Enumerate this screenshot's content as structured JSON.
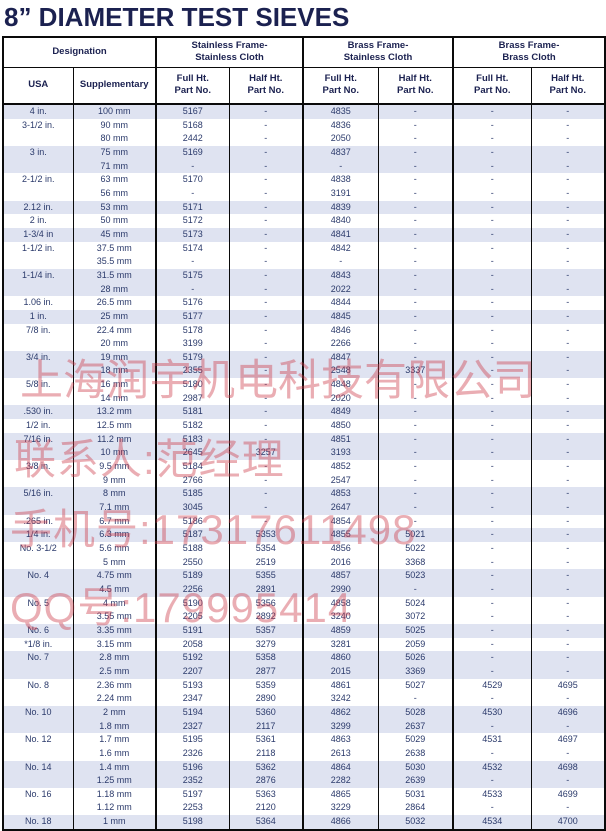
{
  "title": "8” DIAMETER TEST SIEVES",
  "table": {
    "group_headers": [
      {
        "label": "Designation"
      },
      {
        "label": "Stainless Frame-\nStainless Cloth"
      },
      {
        "label": "Brass Frame-\nStainless Cloth"
      },
      {
        "label": "Brass Frame-\nBrass Cloth"
      }
    ],
    "sub_headers": [
      "USA",
      "Supplementary",
      "Full Ht.\nPart No.",
      "Half Ht.\nPart No.",
      "Full Ht.\nPart No.",
      "Half Ht.\nPart No.",
      "Full Ht.\nPart No.",
      "Half Ht.\nPart No."
    ],
    "column_keys": [
      "usa",
      "supplementary",
      "ss-full",
      "ss-half",
      "brass-ss-full",
      "brass-ss-half",
      "brass-brass-full",
      "brass-brass-half"
    ],
    "rows": [
      {
        "shaded": true,
        "cells": [
          "4 in.",
          "100 mm",
          "5167",
          "-",
          "4835",
          "-",
          "-",
          "-"
        ]
      },
      {
        "shaded": false,
        "cells": [
          "3-1/2 in.",
          "90 mm",
          "5168",
          "-",
          "4836",
          "-",
          "-",
          "-"
        ]
      },
      {
        "shaded": false,
        "cells": [
          "",
          "80 mm",
          "2442",
          "-",
          "2050",
          "-",
          "-",
          "-"
        ]
      },
      {
        "shaded": true,
        "cells": [
          "3 in.",
          "75 mm",
          "5169",
          "-",
          "4837",
          "-",
          "-",
          "-"
        ]
      },
      {
        "shaded": true,
        "cells": [
          "",
          "71 mm",
          "-",
          "-",
          "-",
          "-",
          "-",
          "-"
        ]
      },
      {
        "shaded": false,
        "cells": [
          "2-1/2 in.",
          "63 mm",
          "5170",
          "-",
          "4838",
          "-",
          "-",
          "-"
        ]
      },
      {
        "shaded": false,
        "cells": [
          "",
          "56 mm",
          "-",
          "-",
          "3191",
          "-",
          "-",
          "-"
        ]
      },
      {
        "shaded": true,
        "cells": [
          "2.12 in.",
          "53 mm",
          "5171",
          "-",
          "4839",
          "-",
          "-",
          "-"
        ]
      },
      {
        "shaded": false,
        "cells": [
          "2 in.",
          "50 mm",
          "5172",
          "-",
          "4840",
          "-",
          "-",
          "-"
        ]
      },
      {
        "shaded": true,
        "cells": [
          "1-3/4 in",
          "45 mm",
          "5173",
          "-",
          "4841",
          "-",
          "-",
          "-"
        ]
      },
      {
        "shaded": false,
        "cells": [
          "1-1/2 in.",
          "37.5 mm",
          "5174",
          "-",
          "4842",
          "-",
          "-",
          "-"
        ]
      },
      {
        "shaded": false,
        "cells": [
          "",
          "35.5 mm",
          "-",
          "-",
          "-",
          "-",
          "-",
          "-"
        ]
      },
      {
        "shaded": true,
        "cells": [
          "1-1/4 in.",
          "31.5 mm",
          "5175",
          "-",
          "4843",
          "-",
          "-",
          "-"
        ]
      },
      {
        "shaded": true,
        "cells": [
          "",
          "28 mm",
          "-",
          "-",
          "2022",
          "-",
          "-",
          "-"
        ]
      },
      {
        "shaded": false,
        "cells": [
          "1.06 in.",
          "26.5 mm",
          "5176",
          "-",
          "4844",
          "-",
          "-",
          "-"
        ]
      },
      {
        "shaded": true,
        "cells": [
          "1 in.",
          "25 mm",
          "5177",
          "-",
          "4845",
          "-",
          "-",
          "-"
        ]
      },
      {
        "shaded": false,
        "cells": [
          "7/8 in.",
          "22.4 mm",
          "5178",
          "-",
          "4846",
          "-",
          "-",
          "-"
        ]
      },
      {
        "shaded": false,
        "cells": [
          "",
          "20 mm",
          "3199",
          "-",
          "2266",
          "-",
          "-",
          "-"
        ]
      },
      {
        "shaded": true,
        "cells": [
          "3/4 in.",
          "19 mm",
          "5179",
          "-",
          "4847",
          "-",
          "-",
          "-"
        ]
      },
      {
        "shaded": true,
        "cells": [
          "",
          "18 mm",
          "2355",
          "-",
          "2548",
          "3337",
          "-",
          "-"
        ]
      },
      {
        "shaded": false,
        "cells": [
          "5/8 in.",
          "16 mm",
          "5180",
          "-",
          "4848",
          "-",
          "-",
          "-"
        ]
      },
      {
        "shaded": false,
        "cells": [
          "",
          "14 mm",
          "2987",
          "-",
          "2020",
          "-",
          "-",
          "-"
        ]
      },
      {
        "shaded": true,
        "cells": [
          ".530 in.",
          "13.2 mm",
          "5181",
          "-",
          "4849",
          "-",
          "-",
          "-"
        ]
      },
      {
        "shaded": false,
        "cells": [
          "1/2 in.",
          "12.5 mm",
          "5182",
          "-",
          "4850",
          "-",
          "-",
          "-"
        ]
      },
      {
        "shaded": true,
        "cells": [
          "7/16 in.",
          "11.2 mm",
          "5183",
          "-",
          "4851",
          "-",
          "-",
          "-"
        ]
      },
      {
        "shaded": true,
        "cells": [
          "",
          "10 mm",
          "2645",
          "3257",
          "3193",
          "-",
          "-",
          "-"
        ]
      },
      {
        "shaded": false,
        "cells": [
          "3/8 in.",
          "9.5 mm",
          "5184",
          "-",
          "4852",
          "-",
          "-",
          "-"
        ]
      },
      {
        "shaded": false,
        "cells": [
          "",
          "9 mm",
          "2766",
          "-",
          "2547",
          "-",
          "-",
          "-"
        ]
      },
      {
        "shaded": true,
        "cells": [
          "5/16 in.",
          "8 mm",
          "5185",
          "-",
          "4853",
          "-",
          "-",
          "-"
        ]
      },
      {
        "shaded": true,
        "cells": [
          "",
          "7.1 mm",
          "3045",
          "-",
          "2647",
          "-",
          "-",
          "-"
        ]
      },
      {
        "shaded": false,
        "cells": [
          ".265 in.",
          "6.7 mm",
          "5186",
          "-",
          "4854",
          "-",
          "-",
          "-"
        ]
      },
      {
        "shaded": true,
        "cells": [
          "1/4 in.",
          "6.3 mm",
          "5187",
          "5353",
          "4855",
          "5021",
          "-",
          "-"
        ]
      },
      {
        "shaded": false,
        "cells": [
          "No. 3-1/2",
          "5.6 mm",
          "5188",
          "5354",
          "4856",
          "5022",
          "-",
          "-"
        ]
      },
      {
        "shaded": false,
        "cells": [
          "",
          "5 mm",
          "2550",
          "2519",
          "2016",
          "3368",
          "-",
          "-"
        ]
      },
      {
        "shaded": true,
        "cells": [
          "No. 4",
          "4.75 mm",
          "5189",
          "5355",
          "4857",
          "5023",
          "-",
          "-"
        ]
      },
      {
        "shaded": true,
        "cells": [
          "",
          "4.5 mm",
          "2256",
          "2891",
          "2990",
          "-",
          "-",
          "-"
        ]
      },
      {
        "shaded": false,
        "cells": [
          "No. 5",
          "4 mm",
          "5190",
          "5356",
          "4858",
          "5024",
          "-",
          "-"
        ]
      },
      {
        "shaded": false,
        "cells": [
          "",
          "3.55 mm",
          "2205",
          "2892",
          "3240",
          "3072",
          "-",
          "-"
        ]
      },
      {
        "shaded": true,
        "cells": [
          "No. 6",
          "3.35 mm",
          "5191",
          "5357",
          "4859",
          "5025",
          "-",
          "-"
        ]
      },
      {
        "shaded": false,
        "cells": [
          "*1/8 in.",
          "3.15 mm",
          "2058",
          "3279",
          "3281",
          "2059",
          "-",
          "-"
        ]
      },
      {
        "shaded": true,
        "cells": [
          "No. 7",
          "2.8 mm",
          "5192",
          "5358",
          "4860",
          "5026",
          "-",
          "-"
        ]
      },
      {
        "shaded": true,
        "cells": [
          "",
          "2.5 mm",
          "2207",
          "2877",
          "2015",
          "3369",
          "-",
          "-"
        ]
      },
      {
        "shaded": false,
        "cells": [
          "No. 8",
          "2.36 mm",
          "5193",
          "5359",
          "4861",
          "5027",
          "4529",
          "4695"
        ]
      },
      {
        "shaded": false,
        "cells": [
          "",
          "2.24 mm",
          "2347",
          "2890",
          "3242",
          "-",
          "-",
          "-"
        ]
      },
      {
        "shaded": true,
        "cells": [
          "No. 10",
          "2 mm",
          "5194",
          "5360",
          "4862",
          "5028",
          "4530",
          "4696"
        ]
      },
      {
        "shaded": true,
        "cells": [
          "",
          "1.8 mm",
          "2327",
          "2117",
          "3299",
          "2637",
          "-",
          "-"
        ]
      },
      {
        "shaded": false,
        "cells": [
          "No. 12",
          "1.7 mm",
          "5195",
          "5361",
          "4863",
          "5029",
          "4531",
          "4697"
        ]
      },
      {
        "shaded": false,
        "cells": [
          "",
          "1.6 mm",
          "2326",
          "2118",
          "2613",
          "2638",
          "-",
          "-"
        ]
      },
      {
        "shaded": true,
        "cells": [
          "No. 14",
          "1.4 mm",
          "5196",
          "5362",
          "4864",
          "5030",
          "4532",
          "4698"
        ]
      },
      {
        "shaded": true,
        "cells": [
          "",
          "1.25 mm",
          "2352",
          "2876",
          "2282",
          "2639",
          "-",
          "-"
        ]
      },
      {
        "shaded": false,
        "cells": [
          "No. 16",
          "1.18 mm",
          "5197",
          "5363",
          "4865",
          "5031",
          "4533",
          "4699"
        ]
      },
      {
        "shaded": false,
        "cells": [
          "",
          "1.12 mm",
          "2253",
          "2120",
          "3229",
          "2864",
          "-",
          "-"
        ]
      },
      {
        "shaded": true,
        "cells": [
          "No. 18",
          "1 mm",
          "5198",
          "5364",
          "4866",
          "5032",
          "4534",
          "4700"
        ]
      }
    ]
  },
  "watermarks": [
    {
      "text": "上海润宇机电科技有限公司"
    },
    {
      "text": "联系人:范经理"
    },
    {
      "text": "手机号:17317611498"
    },
    {
      "text": "QQ号:179995414"
    }
  ],
  "colors": {
    "title_text": "#1b2150",
    "body_text": "#2b3a6b",
    "shaded_row": "#dfe3f1",
    "border": "#0a0a0a",
    "watermark": "#cd3c4b"
  }
}
